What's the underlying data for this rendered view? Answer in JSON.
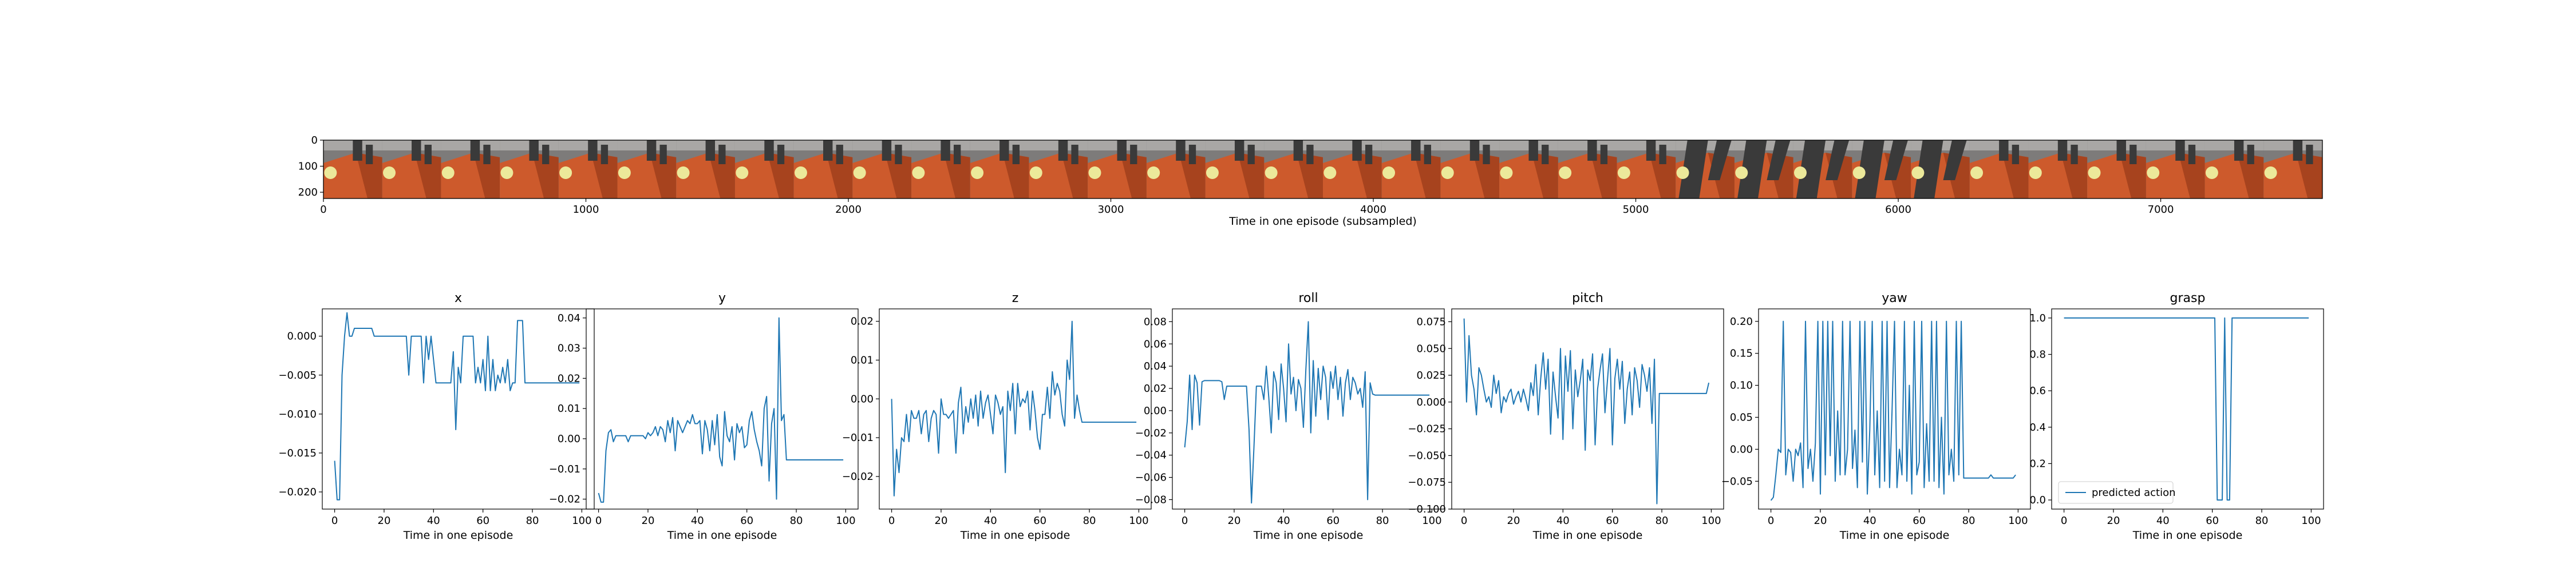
{
  "filmstrip": {
    "xlabel": "Time in one episode (subsampled)",
    "x_ticks": [
      0,
      1000,
      2000,
      3000,
      4000,
      5000,
      6000,
      7000
    ],
    "y_ticks": [
      0,
      100,
      200
    ],
    "xlim": [
      0,
      7616
    ],
    "ylim": [
      0,
      224
    ],
    "frames": 34,
    "colors": {
      "floor": "#cd5a2c",
      "floor_dark": "#a7431e",
      "wall": "#7d7b7a",
      "gripper": "#3a3a3a",
      "ball": "#ece99a"
    }
  },
  "chart_data": [
    {
      "type": "line",
      "title": "x",
      "xlabel": "Time in one episode",
      "xlim": [
        -5,
        105
      ],
      "ylim": [
        -0.0222,
        0.0035
      ],
      "x_ticks": [
        0,
        20,
        40,
        60,
        80,
        100
      ],
      "y_ticks": [
        -0.02,
        -0.015,
        -0.01,
        -0.005,
        0.0
      ],
      "y_tick_labels": [
        "−0.020",
        "−0.015",
        "−0.010",
        "−0.005",
        "0.000"
      ],
      "color": "#1f77b4",
      "values": [
        -0.016,
        -0.021,
        -0.021,
        -0.005,
        0.0,
        0.003,
        0.0,
        0.0,
        0.001,
        0.001,
        0.001,
        0.001,
        0.001,
        0.001,
        0.001,
        0.001,
        0.0,
        0.0,
        0.0,
        0.0,
        0.0,
        0.0,
        0.0,
        0.0,
        0.0,
        0.0,
        0.0,
        0.0,
        0.0,
        0.0,
        -0.005,
        0.0,
        0.0,
        0.0,
        0.0,
        0.0,
        -0.006,
        0.0,
        -0.003,
        0.0,
        -0.003,
        -0.006,
        -0.006,
        -0.006,
        -0.006,
        -0.006,
        -0.006,
        -0.006,
        -0.002,
        -0.012,
        -0.004,
        -0.006,
        0.0,
        0.0,
        0.0,
        0.0,
        0.0,
        -0.006,
        -0.004,
        -0.006,
        -0.003,
        -0.007,
        0.0,
        -0.007,
        -0.003,
        -0.007,
        -0.005,
        -0.006,
        -0.004,
        -0.006,
        -0.003,
        -0.007,
        -0.006,
        -0.006,
        0.002,
        0.002,
        0.002,
        -0.006,
        -0.006,
        -0.006,
        -0.006,
        -0.006,
        -0.006,
        -0.006,
        -0.006,
        -0.006,
        -0.006,
        -0.006,
        -0.006,
        -0.006,
        -0.006,
        -0.006,
        -0.006,
        -0.006,
        -0.006,
        -0.006,
        -0.006,
        -0.006,
        -0.006,
        -0.006
      ]
    },
    {
      "type": "line",
      "title": "y",
      "xlabel": "Time in one episode",
      "xlim": [
        -5,
        105
      ],
      "ylim": [
        -0.0233,
        0.043
      ],
      "x_ticks": [
        0,
        20,
        40,
        60,
        80,
        100
      ],
      "y_ticks": [
        -0.02,
        -0.01,
        0.0,
        0.01,
        0.02,
        0.03,
        0.04
      ],
      "y_tick_labels": [
        "−0.02",
        "−0.01",
        "0.00",
        "0.01",
        "0.02",
        "0.03",
        "0.04"
      ],
      "color": "#1f77b4",
      "values": [
        -0.018,
        -0.021,
        -0.021,
        -0.004,
        0.002,
        0.003,
        -0.001,
        0.001,
        0.001,
        0.001,
        0.001,
        0.001,
        -0.001,
        0.001,
        0.001,
        0.001,
        0.001,
        0.001,
        0.001,
        0.0,
        0.002,
        0.001,
        0.002,
        0.004,
        0.001,
        0.004,
        0.003,
        -0.001,
        0.006,
        0.002,
        0.007,
        -0.004,
        0.006,
        0.004,
        0.002,
        0.004,
        0.006,
        0.005,
        0.008,
        0.005,
        0.005,
        0.006,
        -0.005,
        0.006,
        0.003,
        -0.004,
        0.006,
        -0.002,
        0.008,
        -0.006,
        -0.009,
        0.009,
        0.001,
        -0.001,
        0.004,
        -0.007,
        0.005,
        0.002,
        0.004,
        -0.003,
        -0.002,
        0.006,
        0.009,
        0.003,
        -0.001,
        -0.004,
        -0.009,
        0.01,
        0.014,
        -0.014,
        0.005,
        0.01,
        -0.02,
        0.04,
        0.006,
        0.008,
        -0.007,
        -0.007,
        -0.007,
        -0.007,
        -0.007,
        -0.007,
        -0.007,
        -0.007,
        -0.007,
        -0.007,
        -0.007,
        -0.007,
        -0.007,
        -0.007,
        -0.007,
        -0.007,
        -0.007,
        -0.007,
        -0.007,
        -0.007,
        -0.007,
        -0.007,
        -0.007,
        -0.007
      ]
    },
    {
      "type": "line",
      "title": "z",
      "xlabel": "Time in one episode",
      "xlim": [
        -5,
        105
      ],
      "ylim": [
        -0.0284,
        0.0232
      ],
      "x_ticks": [
        0,
        20,
        40,
        60,
        80,
        100
      ],
      "y_ticks": [
        -0.02,
        -0.01,
        0.0,
        0.01,
        0.02
      ],
      "y_tick_labels": [
        "−0.02",
        "−0.01",
        "0.00",
        "0.01",
        "0.02"
      ],
      "color": "#1f77b4",
      "values": [
        0.0,
        -0.025,
        -0.013,
        -0.019,
        -0.01,
        -0.011,
        -0.004,
        -0.011,
        -0.003,
        -0.005,
        -0.005,
        -0.003,
        -0.009,
        -0.004,
        -0.003,
        -0.011,
        -0.005,
        -0.003,
        -0.004,
        -0.014,
        0.0,
        -0.004,
        -0.004,
        -0.005,
        -0.004,
        -0.003,
        -0.014,
        -0.001,
        0.003,
        -0.009,
        -0.002,
        -0.006,
        0.0,
        -0.005,
        0.001,
        -0.007,
        0.002,
        -0.005,
        -0.001,
        0.001,
        -0.004,
        -0.009,
        0.001,
        -0.001,
        -0.004,
        -0.002,
        -0.019,
        0.002,
        -0.003,
        0.004,
        -0.009,
        0.004,
        -0.002,
        0.0,
        -0.001,
        0.002,
        -0.008,
        0.002,
        -0.003,
        -0.01,
        -0.013,
        -0.004,
        -0.004,
        0.003,
        -0.005,
        0.007,
        0.001,
        0.004,
        0.002,
        -0.004,
        -0.007,
        0.01,
        0.005,
        0.02,
        -0.005,
        0.001,
        -0.003,
        -0.006,
        -0.006,
        -0.006,
        -0.006,
        -0.006,
        -0.006,
        -0.006,
        -0.006,
        -0.006,
        -0.006,
        -0.006,
        -0.006,
        -0.006,
        -0.006,
        -0.006,
        -0.006,
        -0.006,
        -0.006,
        -0.006,
        -0.006,
        -0.006,
        -0.006,
        -0.006
      ]
    },
    {
      "type": "line",
      "title": "roll",
      "xlabel": "Time in one episode",
      "xlim": [
        -5,
        105
      ],
      "ylim": [
        -0.0885,
        0.0915
      ],
      "x_ticks": [
        0,
        20,
        40,
        60,
        80,
        100
      ],
      "y_ticks": [
        -0.08,
        -0.06,
        -0.04,
        -0.02,
        0.0,
        0.02,
        0.04,
        0.06,
        0.08
      ],
      "y_tick_labels": [
        "−0.08",
        "−0.06",
        "−0.04",
        "−0.02",
        "0.00",
        "0.02",
        "0.04",
        "0.06",
        "0.08"
      ],
      "color": "#1f77b4",
      "values": [
        -0.033,
        -0.01,
        0.032,
        -0.017,
        0.032,
        0.025,
        -0.013,
        0.026,
        0.027,
        0.027,
        0.027,
        0.027,
        0.027,
        0.027,
        0.027,
        0.026,
        0.01,
        0.022,
        0.022,
        0.022,
        0.022,
        0.022,
        0.022,
        0.022,
        0.022,
        0.022,
        -0.017,
        -0.083,
        -0.033,
        0.022,
        0.022,
        0.022,
        0.01,
        0.04,
        0.012,
        -0.02,
        0.035,
        0.025,
        -0.008,
        0.042,
        0.02,
        -0.01,
        0.06,
        0.015,
        0.03,
        0.0,
        0.028,
        0.02,
        -0.015,
        0.037,
        0.08,
        -0.02,
        0.045,
        -0.005,
        0.038,
        0.01,
        0.04,
        0.03,
        -0.008,
        0.035,
        0.02,
        0.04,
        0.01,
        0.03,
        -0.005,
        0.025,
        0.037,
        0.01,
        0.03,
        0.025,
        0.015,
        0.02,
        0.003,
        0.035,
        -0.08,
        0.025,
        0.015,
        0.014,
        0.014,
        0.014,
        0.014,
        0.014,
        0.014,
        0.014,
        0.014,
        0.014,
        0.014,
        0.014,
        0.014,
        0.014,
        0.014,
        0.014,
        0.014,
        0.014,
        0.014,
        0.014,
        0.014,
        0.014,
        0.014,
        0.014
      ]
    },
    {
      "type": "line",
      "title": "pitch",
      "xlabel": "Time in one episode",
      "xlim": [
        -5,
        105
      ],
      "ylim": [
        -0.1,
        0.087
      ],
      "x_ticks": [
        0,
        20,
        40,
        60,
        80,
        100
      ],
      "y_ticks": [
        -0.1,
        -0.075,
        -0.05,
        -0.025,
        0.0,
        0.025,
        0.05,
        0.075
      ],
      "y_tick_labels": [
        "−0.100",
        "−0.075",
        "−0.050",
        "−0.025",
        "0.000",
        "0.025",
        "0.050",
        "0.075"
      ],
      "color": "#1f77b4",
      "values": [
        0.078,
        0.0,
        0.062,
        0.025,
        0.012,
        -0.012,
        0.032,
        0.025,
        0.012,
        0.0,
        0.005,
        -0.005,
        0.025,
        0.008,
        0.02,
        -0.01,
        0.005,
        0.0,
        0.008,
        0.012,
        -0.002,
        0.005,
        0.01,
        0.0,
        0.012,
        0.003,
        -0.008,
        0.018,
        0.006,
        0.035,
        -0.012,
        0.022,
        0.046,
        0.012,
        0.04,
        -0.03,
        0.028,
        0.005,
        -0.015,
        0.05,
        -0.035,
        0.043,
        0.01,
        0.048,
        -0.025,
        0.03,
        0.005,
        0.02,
        0.04,
        -0.045,
        0.03,
        0.02,
        0.045,
        -0.04,
        0.012,
        0.03,
        0.045,
        -0.01,
        0.02,
        0.05,
        -0.04,
        0.022,
        0.04,
        0.012,
        0.038,
        -0.02,
        0.012,
        0.028,
        -0.012,
        0.032,
        0.02,
        -0.005,
        0.035,
        0.025,
        0.01,
        0.032,
        -0.02,
        0.04,
        -0.095,
        0.008,
        0.008,
        0.008,
        0.008,
        0.008,
        0.008,
        0.008,
        0.008,
        0.008,
        0.008,
        0.008,
        0.008,
        0.008,
        0.008,
        0.008,
        0.008,
        0.008,
        0.008,
        0.008,
        0.008,
        0.018
      ]
    },
    {
      "type": "line",
      "title": "yaw",
      "xlabel": "Time in one episode",
      "xlim": [
        -5,
        105
      ],
      "ylim": [
        -0.0935,
        0.2195
      ],
      "x_ticks": [
        0,
        20,
        40,
        60,
        80,
        100
      ],
      "y_ticks": [
        -0.05,
        0.0,
        0.05,
        0.1,
        0.15,
        0.2
      ],
      "y_tick_labels": [
        "−0.05",
        "0.00",
        "0.05",
        "0.10",
        "0.15",
        "0.20"
      ],
      "color": "#1f77b4",
      "values": [
        -0.08,
        -0.075,
        -0.04,
        0.0,
        -0.005,
        0.2,
        -0.04,
        0.0,
        -0.005,
        -0.05,
        0.0,
        -0.01,
        0.01,
        -0.06,
        0.2,
        -0.03,
        0.0,
        -0.05,
        0.01,
        0.2,
        -0.07,
        0.2,
        -0.04,
        0.2,
        -0.01,
        0.2,
        -0.05,
        0.06,
        -0.04,
        0.2,
        -0.04,
        0.0,
        0.2,
        -0.03,
        0.03,
        -0.06,
        0.2,
        -0.02,
        0.2,
        -0.07,
        0.03,
        0.2,
        -0.04,
        0.06,
        -0.06,
        0.2,
        -0.05,
        0.2,
        -0.06,
        0.06,
        0.2,
        -0.06,
        0.0,
        -0.04,
        0.2,
        -0.05,
        0.1,
        -0.07,
        0.2,
        -0.04,
        -0.02,
        0.2,
        -0.06,
        0.04,
        -0.05,
        0.2,
        -0.05,
        0.2,
        -0.06,
        0.05,
        -0.07,
        0.2,
        -0.04,
        0.0,
        -0.05,
        0.2,
        -0.04,
        0.2,
        -0.045,
        -0.045,
        -0.045,
        -0.045,
        -0.045,
        -0.045,
        -0.045,
        -0.045,
        -0.045,
        -0.045,
        -0.045,
        -0.04,
        -0.045,
        -0.045,
        -0.045,
        -0.045,
        -0.045,
        -0.045,
        -0.045,
        -0.045,
        -0.045,
        -0.04
      ]
    },
    {
      "type": "line",
      "title": "grasp",
      "xlabel": "Time in one episode",
      "xlim": [
        -5,
        105
      ],
      "ylim": [
        -0.05,
        1.05
      ],
      "x_ticks": [
        0,
        20,
        40,
        60,
        80,
        100
      ],
      "y_ticks": [
        0.0,
        0.2,
        0.4,
        0.6,
        0.8,
        1.0
      ],
      "y_tick_labels": [
        "0.0",
        "0.2",
        "0.4",
        "0.6",
        "0.8",
        "1.0"
      ],
      "color": "#1f77b4",
      "legend": {
        "label": "predicted action",
        "position": "lower-left"
      },
      "values": [
        1,
        1,
        1,
        1,
        1,
        1,
        1,
        1,
        1,
        1,
        1,
        1,
        1,
        1,
        1,
        1,
        1,
        1,
        1,
        1,
        1,
        1,
        1,
        1,
        1,
        1,
        1,
        1,
        1,
        1,
        1,
        1,
        1,
        1,
        1,
        1,
        1,
        1,
        1,
        1,
        1,
        1,
        1,
        1,
        1,
        1,
        1,
        1,
        1,
        1,
        1,
        1,
        1,
        1,
        1,
        1,
        1,
        1,
        1,
        1,
        1,
        1,
        0,
        0,
        0,
        1,
        0,
        0,
        1,
        1,
        1,
        1,
        1,
        1,
        1,
        1,
        1,
        1,
        1,
        1,
        1,
        1,
        1,
        1,
        1,
        1,
        1,
        1,
        1,
        1,
        1,
        1,
        1,
        1,
        1,
        1,
        1,
        1,
        1,
        1
      ]
    }
  ]
}
